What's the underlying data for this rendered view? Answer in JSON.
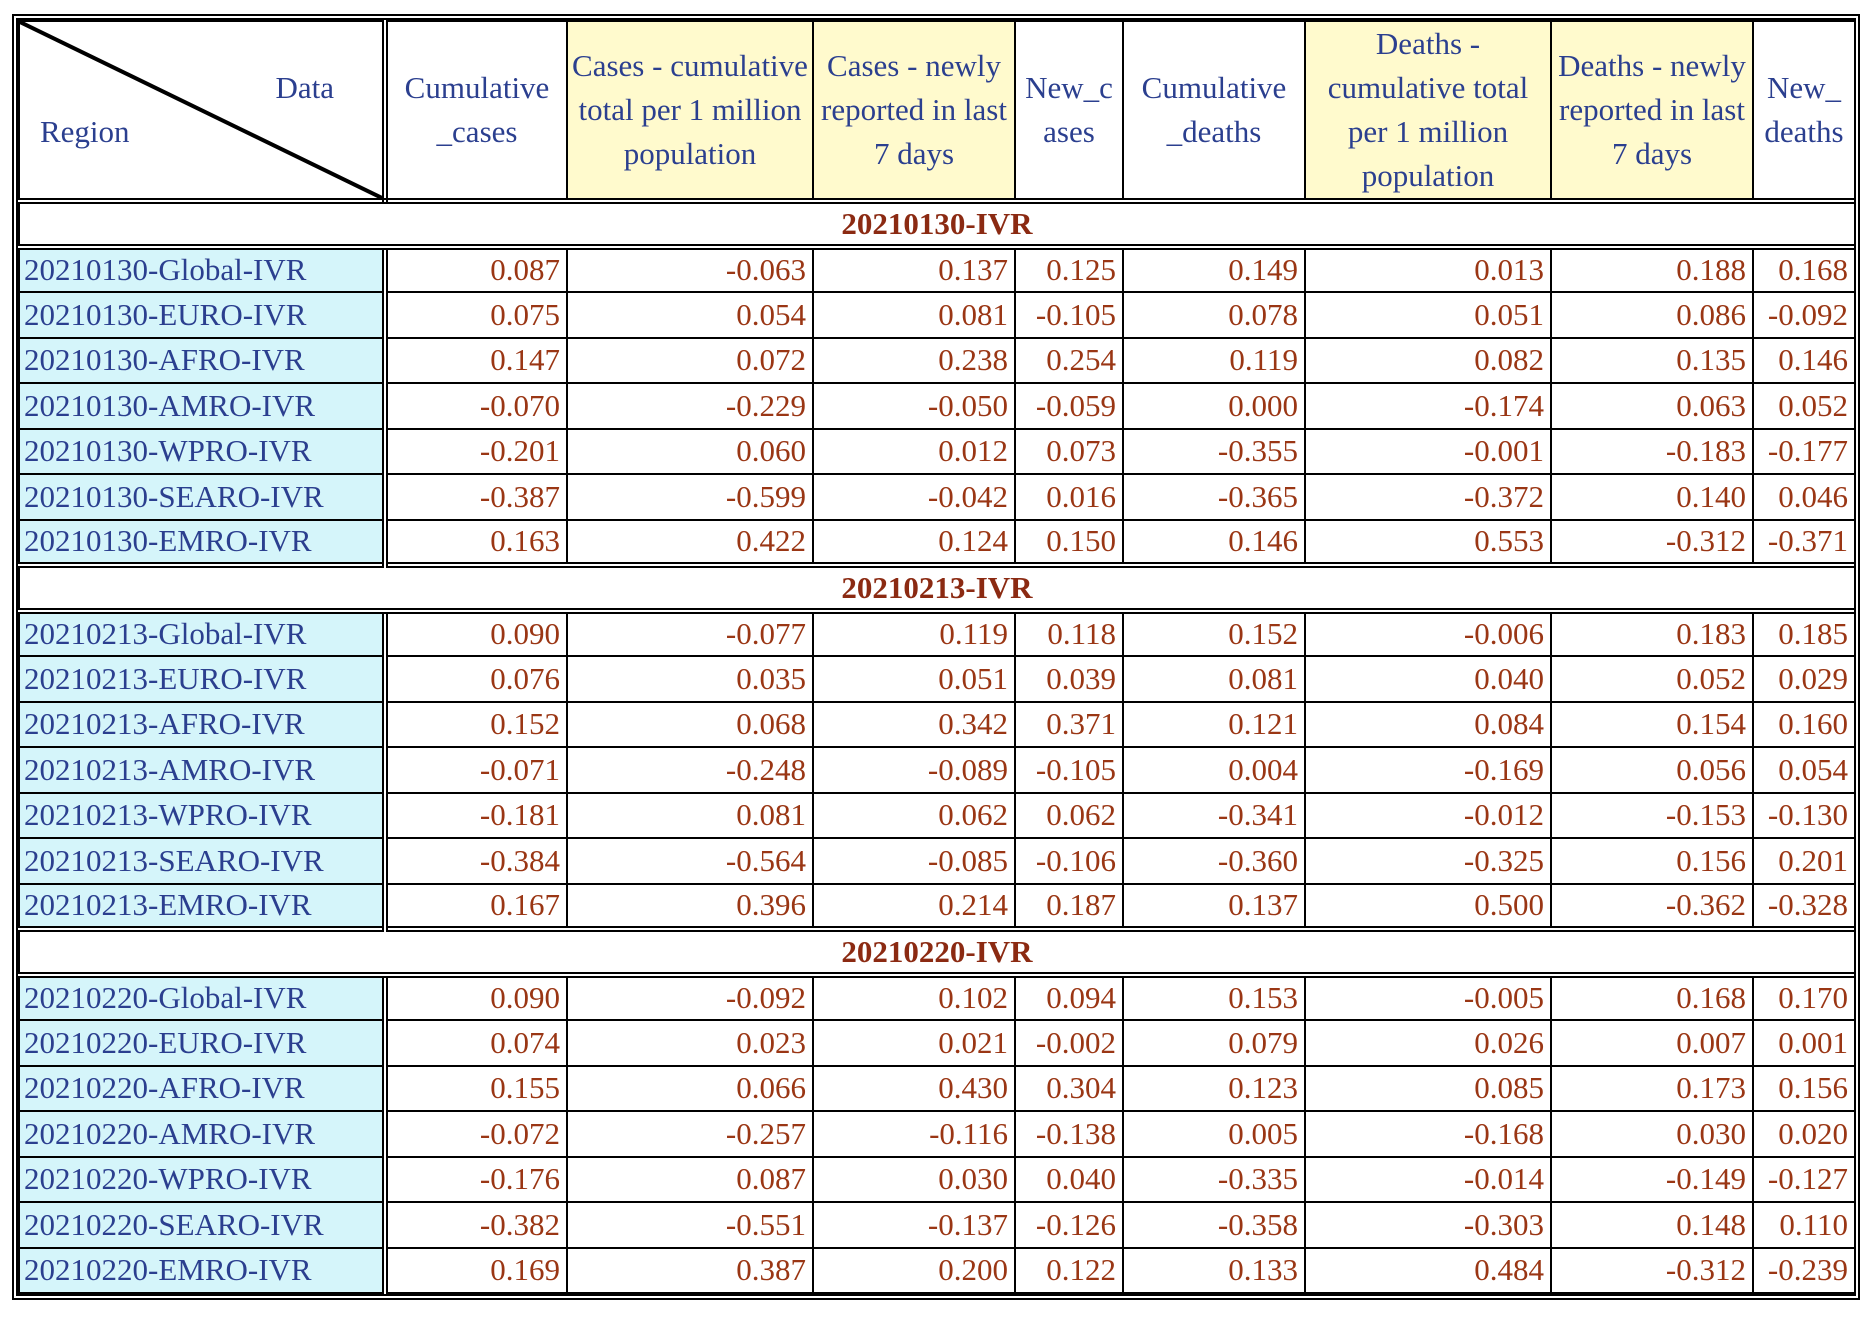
{
  "corner": {
    "top_label": "Data",
    "bottom_label": "Region"
  },
  "columns": [
    {
      "label": "Cumulative _cases",
      "highlight": false
    },
    {
      "label": "Cases - cumulative total per 1 million population",
      "highlight": true
    },
    {
      "label": "Cases - newly reported in last 7 days",
      "highlight": true
    },
    {
      "label": "New_c ases",
      "highlight": false
    },
    {
      "label": "Cumulative _deaths",
      "highlight": false
    },
    {
      "label": "Deaths - cumulative total per 1 million population",
      "highlight": true
    },
    {
      "label": "Deaths - newly reported in last 7 days",
      "highlight": true
    },
    {
      "label": "New_ deaths",
      "highlight": false
    }
  ],
  "groups": [
    {
      "title": "20210130-IVR",
      "rows": [
        {
          "region": "20210130-Global-IVR",
          "values": [
            "0.087",
            "-0.063",
            "0.137",
            "0.125",
            "0.149",
            "0.013",
            "0.188",
            "0.168"
          ]
        },
        {
          "region": "20210130-EURO-IVR",
          "values": [
            "0.075",
            "0.054",
            "0.081",
            "-0.105",
            "0.078",
            "0.051",
            "0.086",
            "-0.092"
          ]
        },
        {
          "region": "20210130-AFRO-IVR",
          "values": [
            "0.147",
            "0.072",
            "0.238",
            "0.254",
            "0.119",
            "0.082",
            "0.135",
            "0.146"
          ]
        },
        {
          "region": "20210130-AMRO-IVR",
          "values": [
            "-0.070",
            "-0.229",
            "-0.050",
            "-0.059",
            "0.000",
            "-0.174",
            "0.063",
            "0.052"
          ]
        },
        {
          "region": "20210130-WPRO-IVR",
          "values": [
            "-0.201",
            "0.060",
            "0.012",
            "0.073",
            "-0.355",
            "-0.001",
            "-0.183",
            "-0.177"
          ]
        },
        {
          "region": "20210130-SEARO-IVR",
          "values": [
            "-0.387",
            "-0.599",
            "-0.042",
            "0.016",
            "-0.365",
            "-0.372",
            "0.140",
            "0.046"
          ]
        },
        {
          "region": "20210130-EMRO-IVR",
          "values": [
            "0.163",
            "0.422",
            "0.124",
            "0.150",
            "0.146",
            "0.553",
            "-0.312",
            "-0.371"
          ]
        }
      ]
    },
    {
      "title": "20210213-IVR",
      "rows": [
        {
          "region": "20210213-Global-IVR",
          "values": [
            "0.090",
            "-0.077",
            "0.119",
            "0.118",
            "0.152",
            "-0.006",
            "0.183",
            "0.185"
          ]
        },
        {
          "region": "20210213-EURO-IVR",
          "values": [
            "0.076",
            "0.035",
            "0.051",
            "0.039",
            "0.081",
            "0.040",
            "0.052",
            "0.029"
          ]
        },
        {
          "region": "20210213-AFRO-IVR",
          "values": [
            "0.152",
            "0.068",
            "0.342",
            "0.371",
            "0.121",
            "0.084",
            "0.154",
            "0.160"
          ]
        },
        {
          "region": "20210213-AMRO-IVR",
          "values": [
            "-0.071",
            "-0.248",
            "-0.089",
            "-0.105",
            "0.004",
            "-0.169",
            "0.056",
            "0.054"
          ]
        },
        {
          "region": "20210213-WPRO-IVR",
          "values": [
            "-0.181",
            "0.081",
            "0.062",
            "0.062",
            "-0.341",
            "-0.012",
            "-0.153",
            "-0.130"
          ]
        },
        {
          "region": "20210213-SEARO-IVR",
          "values": [
            "-0.384",
            "-0.564",
            "-0.085",
            "-0.106",
            "-0.360",
            "-0.325",
            "0.156",
            "0.201"
          ]
        },
        {
          "region": "20210213-EMRO-IVR",
          "values": [
            "0.167",
            "0.396",
            "0.214",
            "0.187",
            "0.137",
            "0.500",
            "-0.362",
            "-0.328"
          ]
        }
      ]
    },
    {
      "title": "20210220-IVR",
      "rows": [
        {
          "region": "20210220-Global-IVR",
          "values": [
            "0.090",
            "-0.092",
            "0.102",
            "0.094",
            "0.153",
            "-0.005",
            "0.168",
            "0.170"
          ]
        },
        {
          "region": "20210220-EURO-IVR",
          "values": [
            "0.074",
            "0.023",
            "0.021",
            "-0.002",
            "0.079",
            "0.026",
            "0.007",
            "0.001"
          ]
        },
        {
          "region": "20210220-AFRO-IVR",
          "values": [
            "0.155",
            "0.066",
            "0.430",
            "0.304",
            "0.123",
            "0.085",
            "0.173",
            "0.156"
          ]
        },
        {
          "region": "20210220-AMRO-IVR",
          "values": [
            "-0.072",
            "-0.257",
            "-0.116",
            "-0.138",
            "0.005",
            "-0.168",
            "0.030",
            "0.020"
          ]
        },
        {
          "region": "20210220-WPRO-IVR",
          "values": [
            "-0.176",
            "0.087",
            "0.030",
            "0.040",
            "-0.335",
            "-0.014",
            "-0.149",
            "-0.127"
          ]
        },
        {
          "region": "20210220-SEARO-IVR",
          "values": [
            "-0.382",
            "-0.551",
            "-0.137",
            "-0.126",
            "-0.358",
            "-0.303",
            "0.148",
            "0.110"
          ]
        },
        {
          "region": "20210220-EMRO-IVR",
          "values": [
            "0.169",
            "0.387",
            "0.200",
            "0.122",
            "0.133",
            "0.484",
            "-0.312",
            "-0.239"
          ]
        }
      ]
    }
  ]
}
